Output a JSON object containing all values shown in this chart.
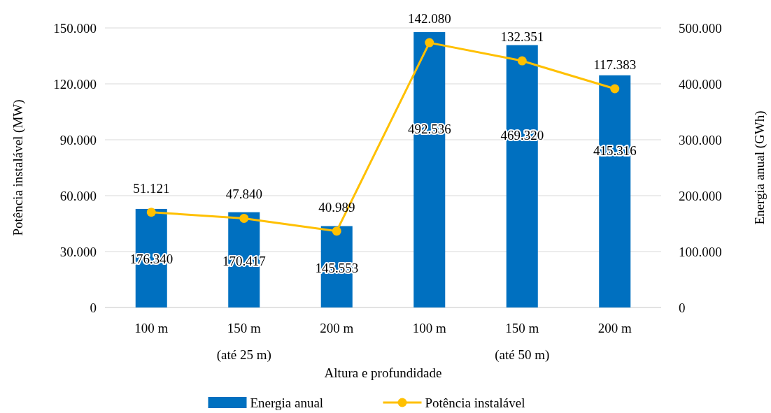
{
  "chart_data": {
    "type": "bar",
    "xlabel": "Altura  e profundidade",
    "ylabel": "Potência instalável  (MW)",
    "y2label": "Energia  anual (GWh)",
    "categories": [
      "100 m",
      "150 m",
      "200 m",
      "100 m",
      "150 m",
      "200 m"
    ],
    "annotations": [
      "(até 25 m)",
      "(até 50 m)"
    ],
    "series": [
      {
        "name": "Energia anual",
        "axis": "y2",
        "color": "#0070c0",
        "values": [
          176340,
          170417,
          145553,
          492536,
          469320,
          415316
        ],
        "value_labels": [
          "176.340",
          "170.417",
          "145.553",
          "492.536",
          "469.320",
          "415.316"
        ]
      },
      {
        "name": "Potência instalável",
        "type": "line",
        "color": "#ffc000",
        "marker": "circle",
        "values": [
          51121,
          47840,
          40989,
          142080,
          132351,
          117383
        ],
        "value_labels": [
          "51.121",
          "47.840",
          "40.989",
          "142.080",
          "132.351",
          "117.383"
        ]
      }
    ],
    "ylim": [
      0,
      150000
    ],
    "yticks": [
      {
        "value": 0,
        "label": "0"
      },
      {
        "value": 30000,
        "label": "30.000"
      },
      {
        "value": 60000,
        "label": "60.000"
      },
      {
        "value": 90000,
        "label": "90.000"
      },
      {
        "value": 120000,
        "label": "120.000"
      },
      {
        "value": 150000,
        "label": "150.000"
      }
    ],
    "y2lim": [
      0,
      500000
    ],
    "y2ticks": [
      {
        "value": 0,
        "label": "0"
      },
      {
        "value": 100000,
        "label": "100.000"
      },
      {
        "value": 200000,
        "label": "200.000"
      },
      {
        "value": 300000,
        "label": "300.000"
      },
      {
        "value": 400000,
        "label": "400.000"
      },
      {
        "value": 500000,
        "label": "500.000"
      }
    ],
    "grid": "y",
    "legend": "bottom"
  }
}
